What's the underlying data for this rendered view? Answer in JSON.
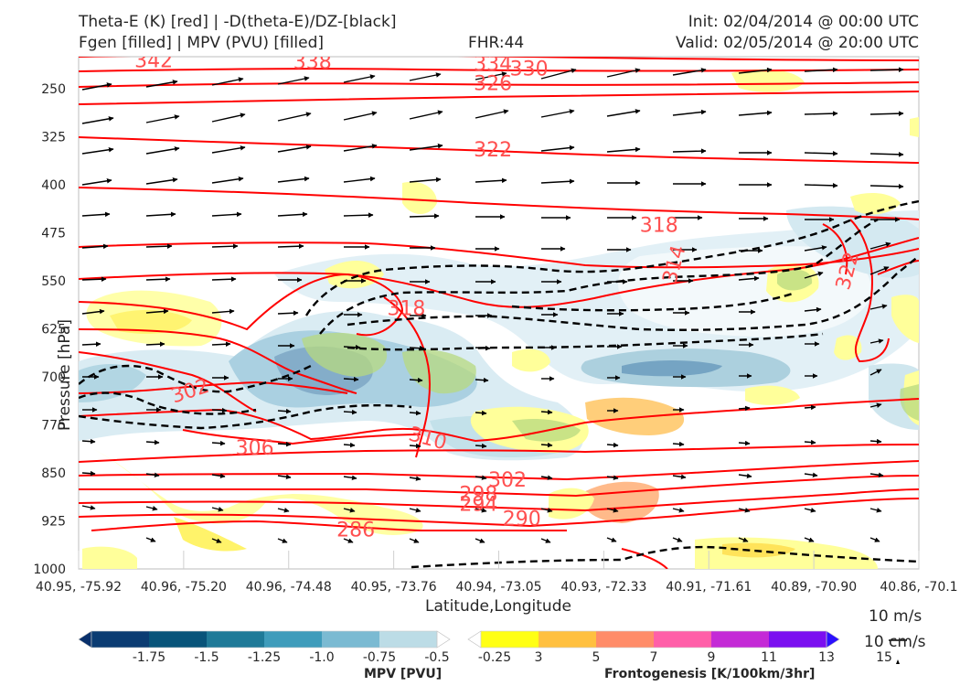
{
  "header": {
    "title_line1": "Theta-E (K) [red] | -D(theta-E)/DZ-[black]",
    "title_line2": "Fgen [filled] | MPV (PVU) [filled]",
    "fhr": "FHR:44",
    "init": "Init: 02/04/2014 @ 00:00 UTC",
    "valid": "Valid: 02/05/2014 @ 20:00 UTC"
  },
  "chart_data": {
    "type": "cross-section",
    "xlabel": "Latitude,Longitude",
    "ylabel": "Pressure [hPa]",
    "x_ticks": [
      "40.95, -75.92",
      "40.96, -75.20",
      "40.96, -74.48",
      "40.95, -73.76",
      "40.94, -73.05",
      "40.93, -72.33",
      "40.91, -71.61",
      "40.89, -70.90",
      "40.86, -70.1"
    ],
    "y_ticks": [
      "250",
      "325",
      "400",
      "475",
      "550",
      "625",
      "700",
      "775",
      "850",
      "925",
      "1000"
    ],
    "ylim": [
      200,
      1000
    ],
    "y_inverted": true,
    "theta_e_contour_labels": [
      {
        "text": "342",
        "pressure": 205,
        "lon": -75.4
      },
      {
        "text": "338",
        "pressure": 207,
        "lon": -74.3
      },
      {
        "text": "334",
        "pressure": 210,
        "lon": -73.05
      },
      {
        "text": "330",
        "pressure": 218,
        "lon": -72.8
      },
      {
        "text": "326",
        "pressure": 241,
        "lon": -73.05
      },
      {
        "text": "322",
        "pressure": 344,
        "lon": -73.05
      },
      {
        "text": "318",
        "pressure": 462,
        "lon": -71.9
      },
      {
        "text": "314",
        "pressure": 524,
        "lon": -71.8
      },
      {
        "text": "322",
        "pressure": 534,
        "lon": -70.6
      },
      {
        "text": "318",
        "pressure": 592,
        "lon": -73.65
      },
      {
        "text": "302",
        "pressure": 721,
        "lon": -75.15
      },
      {
        "text": "310",
        "pressure": 795,
        "lon": -73.5
      },
      {
        "text": "306",
        "pressure": 810,
        "lon": -74.7
      },
      {
        "text": "302",
        "pressure": 860,
        "lon": -72.95
      },
      {
        "text": "298",
        "pressure": 882,
        "lon": -73.15
      },
      {
        "text": "294",
        "pressure": 898,
        "lon": -73.15
      },
      {
        "text": "290",
        "pressure": 921,
        "lon": -72.85
      },
      {
        "text": "286",
        "pressure": 938,
        "lon": -74.0
      }
    ],
    "mpv_colorbar": {
      "label": "MPV [PVU]",
      "ticks": [
        "-1.75",
        "-1.5",
        "-1.25",
        "-1.0",
        "-0.75",
        "-0.5",
        "-0.25"
      ],
      "colors": [
        "#08306b",
        "#0b3c72",
        "#08547a",
        "#1f7a98",
        "#3f9cbb",
        "#7bbad2",
        "#bcdce6",
        "#ffffff"
      ]
    },
    "fgen_colorbar": {
      "label": "Frontogenesis [K/100km/3hr]",
      "ticks": [
        "3",
        "5",
        "7",
        "9",
        "11",
        "13",
        "15"
      ],
      "colors": [
        "#ffffff",
        "#ffff14",
        "#ffc040",
        "#ff8c69",
        "#ff5fa8",
        "#c42ad6",
        "#7b0ff0",
        "#2b10ff"
      ]
    }
  },
  "wind_reference": {
    "line1": "10 m/s",
    "line2": "10 cm/s"
  }
}
